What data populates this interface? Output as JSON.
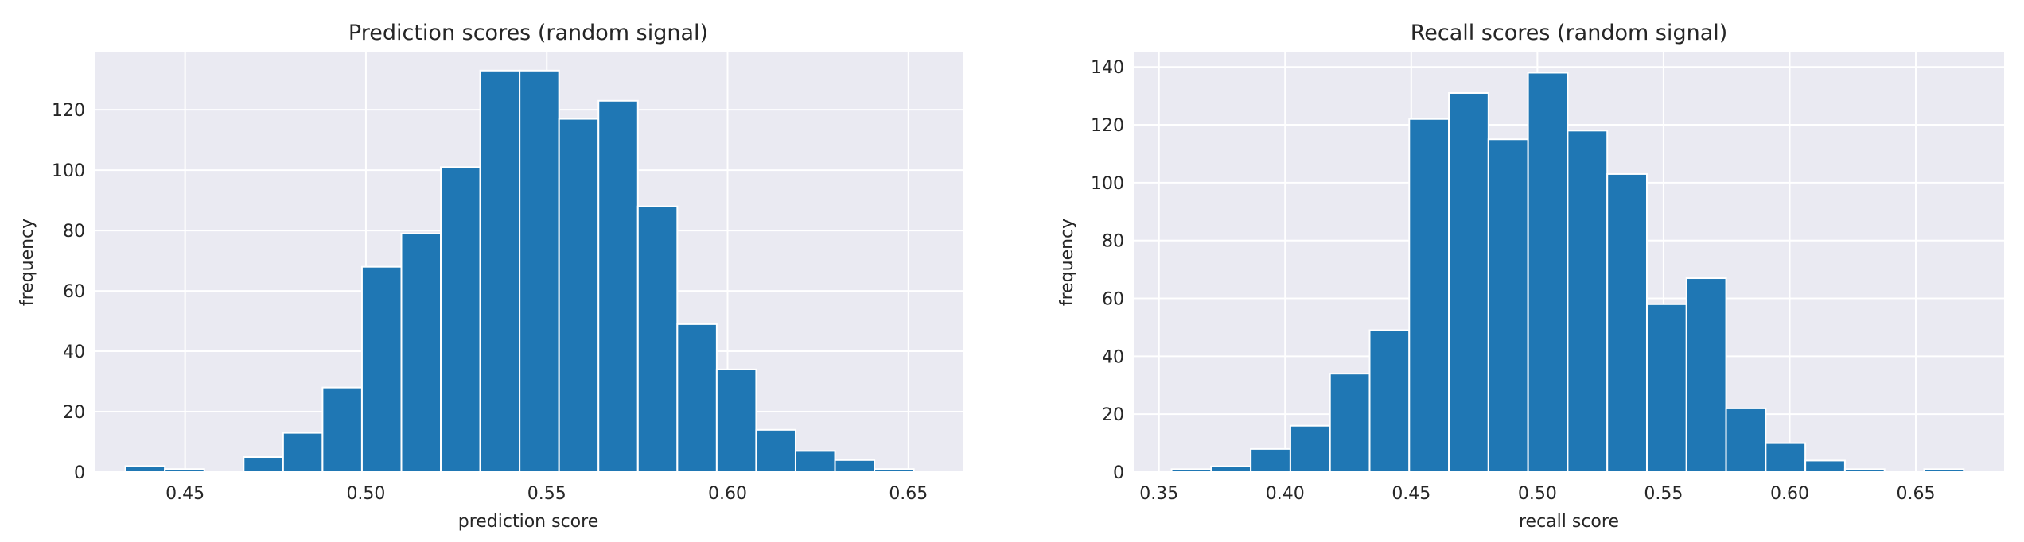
{
  "chart_data": [
    {
      "type": "bar",
      "title": "Prediction scores (random signal)",
      "xlabel": "prediction score",
      "ylabel": "frequency",
      "xlim": [
        0.425,
        0.665
      ],
      "ylim": [
        0,
        139
      ],
      "xticks": [
        0.45,
        0.5,
        0.55,
        0.6,
        0.65
      ],
      "xtick_labels": [
        "0.45",
        "0.50",
        "0.55",
        "0.60",
        "0.65"
      ],
      "yticks": [
        0,
        20,
        40,
        60,
        80,
        100,
        120
      ],
      "ytick_labels": [
        "0",
        "20",
        "40",
        "60",
        "80",
        "100",
        "120"
      ],
      "grid": true,
      "bin_start": 0.4335,
      "bin_width": 0.0109,
      "values": [
        2,
        1,
        0,
        5,
        13,
        28,
        68,
        79,
        101,
        133,
        133,
        117,
        123,
        88,
        49,
        34,
        14,
        7,
        4,
        1
      ],
      "bar_color": "#1f77b4",
      "background": "#eaeaf2"
    },
    {
      "type": "bar",
      "title": "Recall scores (random signal)",
      "xlabel": "recall score",
      "ylabel": "frequency",
      "xlim": [
        0.34,
        0.685
      ],
      "ylim": [
        0,
        145
      ],
      "xticks": [
        0.35,
        0.4,
        0.45,
        0.5,
        0.55,
        0.6,
        0.65
      ],
      "xtick_labels": [
        "0.35",
        "0.40",
        "0.45",
        "0.50",
        "0.55",
        "0.60",
        "0.65"
      ],
      "yticks": [
        0,
        20,
        40,
        60,
        80,
        100,
        120,
        140
      ],
      "ytick_labels": [
        "0",
        "20",
        "40",
        "60",
        "80",
        "100",
        "120",
        "140"
      ],
      "grid": true,
      "bin_start": 0.355,
      "bin_width": 0.0157,
      "values": [
        1,
        2,
        8,
        16,
        34,
        49,
        122,
        131,
        115,
        138,
        118,
        103,
        58,
        67,
        22,
        10,
        4,
        1,
        0,
        1
      ],
      "bar_color": "#1f77b4",
      "background": "#eaeaf2"
    }
  ]
}
